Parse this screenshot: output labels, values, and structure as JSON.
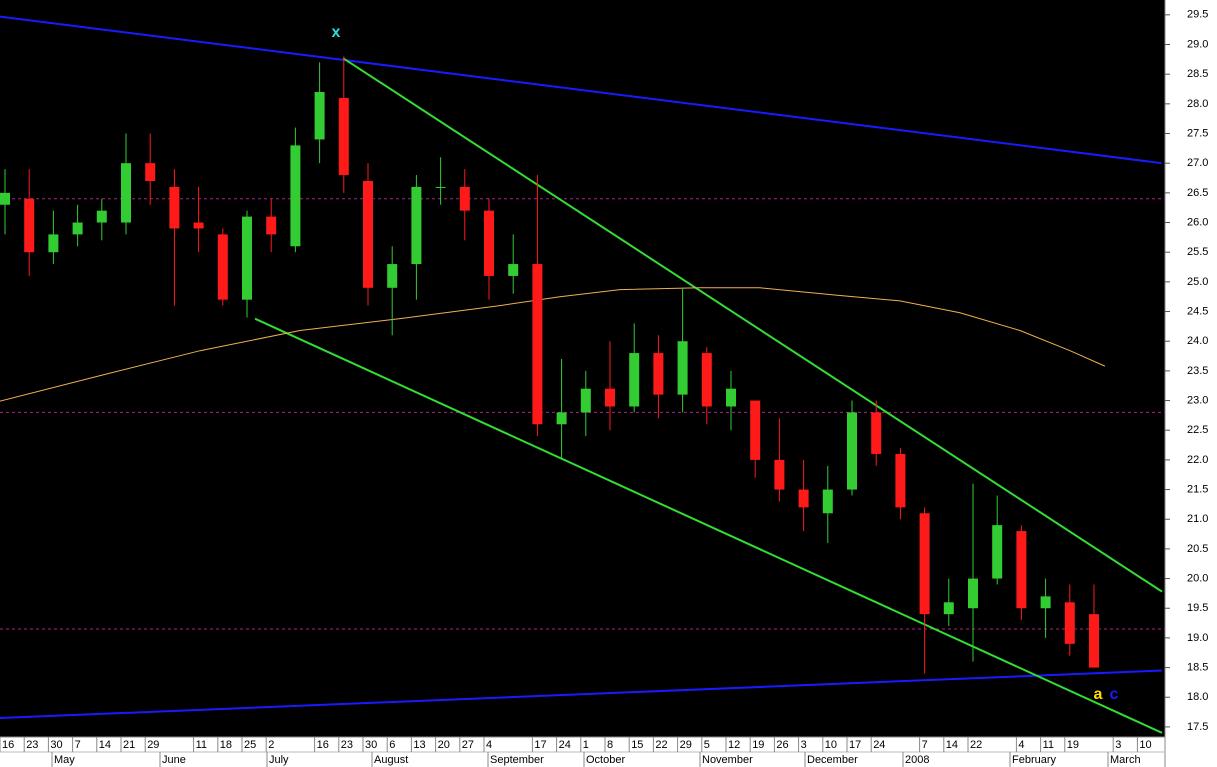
{
  "chart_data": {
    "type": "candlestick",
    "categories": [
      "16",
      "23",
      "30",
      "7",
      "14",
      "21",
      "29",
      null,
      "11",
      "18",
      "25",
      "2",
      null,
      "16",
      "23",
      "30",
      "6",
      "13",
      "20",
      "27",
      "4",
      null,
      "17",
      "24",
      "1",
      "8",
      "15",
      "22",
      "29",
      "5",
      "12",
      "19",
      "26",
      "3",
      "10",
      "17",
      "24",
      null,
      "7",
      "14",
      "22",
      null,
      "4",
      "11",
      "19",
      null,
      "3",
      "10"
    ],
    "x_groups": [
      "May",
      "June",
      "July",
      "August",
      "September",
      "October",
      "November",
      "December",
      "2008",
      "February",
      "March"
    ],
    "open": [
      26.3,
      26.4,
      25.5,
      25.8,
      26.0,
      26.0,
      27.0,
      26.6,
      26.0,
      25.8,
      24.7,
      26.1,
      25.6,
      27.4,
      28.1,
      26.7,
      24.9,
      25.3,
      26.6,
      26.6,
      26.2,
      25.1,
      25.3,
      22.6,
      22.8,
      23.2,
      22.9,
      23.8,
      23.1,
      23.8,
      22.9,
      23.0,
      22.0,
      21.5,
      21.1,
      21.5,
      22.8,
      22.1,
      21.1,
      19.4,
      19.5,
      20.0,
      20.8,
      19.5,
      19.6,
      19.4,
      null,
      null
    ],
    "high": [
      26.9,
      26.9,
      26.2,
      26.3,
      26.4,
      27.5,
      27.5,
      26.9,
      26.6,
      25.9,
      26.2,
      26.4,
      27.6,
      28.7,
      28.8,
      27.0,
      25.6,
      26.8,
      27.1,
      26.9,
      26.4,
      25.8,
      26.8,
      23.7,
      23.5,
      24.0,
      24.3,
      24.1,
      24.9,
      23.9,
      23.5,
      23.0,
      22.7,
      22.0,
      21.9,
      23.0,
      23.0,
      22.2,
      21.2,
      20.0,
      21.6,
      21.4,
      20.9,
      20.0,
      19.9,
      19.9,
      null,
      null
    ],
    "low": [
      25.8,
      25.1,
      25.3,
      25.6,
      25.7,
      25.8,
      26.3,
      24.6,
      25.5,
      24.6,
      24.4,
      25.5,
      25.5,
      27.0,
      26.5,
      24.6,
      24.1,
      24.7,
      26.3,
      25.7,
      24.7,
      24.8,
      22.4,
      22.0,
      22.4,
      22.5,
      22.8,
      22.7,
      22.8,
      22.6,
      22.5,
      21.7,
      21.3,
      20.8,
      20.6,
      21.4,
      21.9,
      21.0,
      18.4,
      19.2,
      18.6,
      19.9,
      19.3,
      19.0,
      18.7,
      18.5,
      null,
      null
    ],
    "close": [
      26.5,
      25.5,
      25.8,
      26.0,
      26.2,
      27.0,
      26.7,
      25.9,
      25.9,
      24.7,
      26.1,
      25.8,
      27.3,
      28.2,
      26.8,
      24.9,
      25.3,
      26.6,
      26.6,
      26.2,
      25.1,
      25.3,
      22.6,
      22.8,
      23.2,
      22.9,
      23.8,
      23.1,
      24.0,
      22.9,
      23.2,
      22.0,
      21.5,
      21.2,
      21.5,
      22.8,
      22.1,
      21.2,
      19.4,
      19.6,
      20.0,
      20.9,
      19.5,
      19.7,
      18.9,
      18.5,
      null,
      null
    ],
    "up_color": "#33cc33",
    "down_color": "#ff1a1a",
    "ylim": [
      17.33,
      29.75
    ],
    "yticks": [
      17.5,
      {
        "value": 18,
        "label": "18.0"
      },
      18.5,
      {
        "value": 19,
        "label": "19.0"
      },
      19.5,
      {
        "value": 20,
        "label": "20.0"
      },
      20.5,
      {
        "value": 21,
        "label": "21.0"
      },
      21.5,
      {
        "value": 22,
        "label": "22.0"
      },
      22.5,
      {
        "value": 23,
        "label": "23.0"
      },
      23.5,
      {
        "value": 24,
        "label": "24.0"
      },
      24.5,
      {
        "value": 25,
        "label": "25.0"
      },
      25.5,
      {
        "value": 26,
        "label": "26.0"
      },
      26.5,
      {
        "value": 27,
        "label": "27.0"
      },
      27.5,
      {
        "value": 28,
        "label": "28.0"
      },
      28.5,
      {
        "value": 29,
        "label": "29.0"
      },
      29.5
    ],
    "levels": [
      26.4,
      22.8,
      19.15
    ],
    "level_color": "#b0208a",
    "lines": [
      {
        "color": "#1a1aff",
        "x": [
          -0.21,
          47.8
        ],
        "values": [
          29.47,
          27.0
        ]
      },
      {
        "color": "#1a1aff",
        "x": [
          -0.21,
          47.8
        ],
        "values": [
          17.65,
          18.45
        ]
      },
      {
        "color": "#33dd33",
        "x": [
          13.97,
          47.81
        ],
        "values": [
          28.77,
          19.78
        ]
      },
      {
        "color": "#33dd33",
        "x": [
          10.33,
          47.81
        ],
        "values": [
          24.38,
          17.4
        ]
      },
      {
        "color": "#f0b050",
        "x": [
          -0.21,
          3.93,
          8.06,
          12.19,
          16.32,
          20.45,
          22.93,
          25.41,
          28.72,
          31.2,
          34.5,
          36.98,
          39.46,
          41.94,
          44.01,
          45.45
        ],
        "values": [
          22.99,
          23.42,
          23.84,
          24.18,
          24.38,
          24.6,
          24.75,
          24.87,
          24.9,
          24.9,
          24.77,
          24.68,
          24.48,
          24.18,
          23.84,
          23.58
        ]
      }
    ],
    "annotations": [
      {
        "text": "x",
        "color": "#33dddd"
      },
      {
        "text": "a",
        "color": "#ffdd00"
      },
      {
        "text": "c",
        "color": "#1a1aff"
      }
    ]
  }
}
